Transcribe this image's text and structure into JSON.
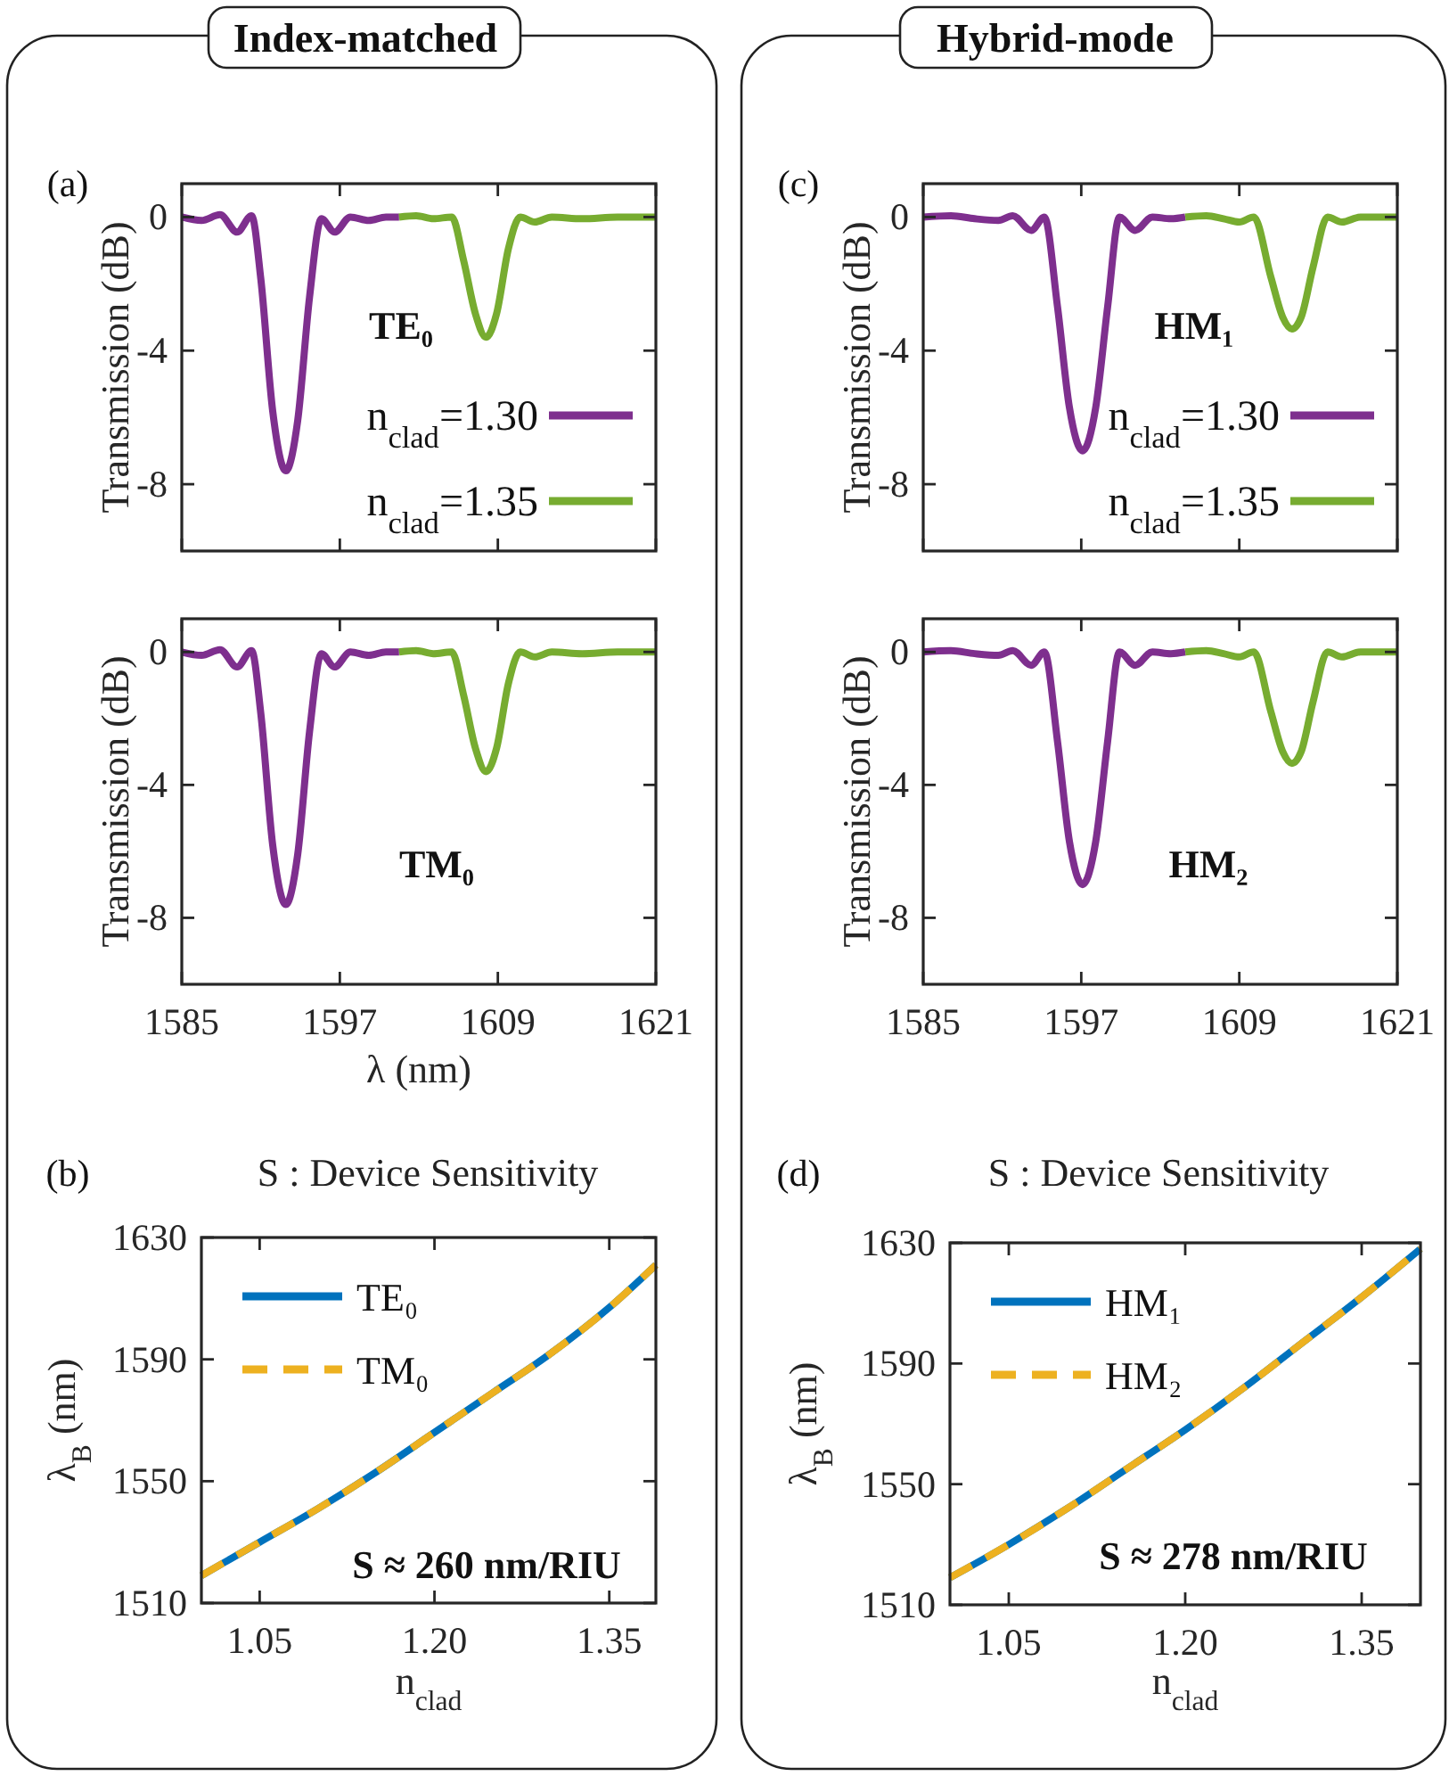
{
  "chart_data": [
    {
      "type": "line",
      "title": "Index-matched",
      "ylabel": "Transmission (dB)",
      "annotations": [
        "(a)",
        "TE₀"
      ],
      "xlim": [
        1585,
        1621
      ],
      "xticks": [
        1585,
        1597,
        1609,
        1621
      ],
      "ylim": [
        -10,
        1
      ],
      "yticks": [
        -8,
        -4,
        0
      ],
      "tick_labels": "y",
      "legend": "right",
      "series": [
        {
          "name": "n$_{clad}$=1.30",
          "color": "#7e2f8e",
          "x": [
            1585,
            1586.5,
            1587.9,
            1589.2,
            1590.3,
            1591,
            1591.9,
            1592.9,
            1593.8,
            1594.7,
            1595.6,
            1596.6,
            1597.8,
            1599.2,
            1600.5,
            1601.5
          ],
          "values": [
            0,
            -0.1,
            0.07,
            -0.45,
            0.04,
            -1.85,
            -5.8,
            -7.6,
            -6.1,
            -2.4,
            -0.05,
            -0.45,
            0,
            -0.1,
            0,
            0
          ]
        },
        {
          "name": "n$_{clad}$=1.35",
          "color": "#77ac30",
          "x": [
            1601.5,
            1602.8,
            1604.1,
            1605.5,
            1606.4,
            1607.3,
            1608.1,
            1608.9,
            1609.8,
            1610.7,
            1611.8,
            1613.1,
            1615.4,
            1618.1,
            1621
          ],
          "values": [
            0,
            0.04,
            -0.05,
            0,
            -1.3,
            -2.9,
            -3.6,
            -2.9,
            -0.95,
            0,
            -0.15,
            0,
            -0.05,
            0,
            0
          ]
        }
      ]
    },
    {
      "type": "line",
      "xlabel": "λ (nm)",
      "ylabel": "Transmission (dB)",
      "annotations": [
        "TM₀"
      ],
      "xlim": [
        1585,
        1621
      ],
      "xticks": [
        1585,
        1597,
        1609,
        1621
      ],
      "ylim": [
        -10,
        1
      ],
      "yticks": [
        -8,
        -4,
        0
      ],
      "series": [
        {
          "color": "#7e2f8e",
          "x": [
            1585,
            1586.5,
            1587.9,
            1589.2,
            1590.3,
            1591,
            1591.9,
            1592.9,
            1593.8,
            1594.7,
            1595.6,
            1596.6,
            1597.8,
            1599.2,
            1600.5,
            1601.5
          ],
          "values": [
            0,
            -0.1,
            0.07,
            -0.45,
            0.04,
            -1.85,
            -5.8,
            -7.6,
            -6.1,
            -2.4,
            -0.05,
            -0.45,
            0,
            -0.1,
            0,
            0
          ]
        },
        {
          "color": "#77ac30",
          "x": [
            1601.5,
            1602.8,
            1604.1,
            1605.5,
            1606.4,
            1607.3,
            1608.1,
            1608.9,
            1609.8,
            1610.7,
            1611.8,
            1613.1,
            1615.4,
            1618.1,
            1621
          ],
          "values": [
            0,
            0.04,
            -0.05,
            0,
            -1.3,
            -2.9,
            -3.6,
            -2.9,
            -0.95,
            0,
            -0.15,
            0,
            -0.05,
            0,
            0
          ]
        }
      ]
    },
    {
      "type": "line",
      "title": "S : Device Sensitivity",
      "xlabel": "n$_{clad}$",
      "ylabel": "λ$_{B}$ (nm)",
      "annotations": [
        "(b)",
        "S ≈ 260 nm/RIU"
      ],
      "xlim": [
        1,
        1.39
      ],
      "xticks": [
        1.05,
        {
          "value": 1.2,
          "label": "1.20"
        },
        1.35
      ],
      "ylim": [
        1510,
        1630
      ],
      "yticks": [
        1510,
        1550,
        1590,
        1630
      ],
      "legend": "top left",
      "series": [
        {
          "name": "TE₀",
          "color": "#0072bd",
          "line_style": "solid",
          "x": [
            1,
            1.05,
            1.1,
            1.15,
            1.2,
            1.25,
            1.3,
            1.35,
            1.39
          ],
          "values": [
            1519,
            1530,
            1541,
            1553,
            1566,
            1579,
            1592,
            1607,
            1621
          ]
        },
        {
          "name": "TM₀",
          "color": "#edb120",
          "line_style": "dashed",
          "x": [
            1,
            1.05,
            1.1,
            1.15,
            1.2,
            1.25,
            1.3,
            1.35,
            1.39
          ],
          "values": [
            1519,
            1530,
            1541,
            1553,
            1566,
            1579,
            1592,
            1607,
            1621
          ]
        }
      ]
    },
    {
      "type": "line",
      "title": "Hybrid-mode",
      "ylabel": "Transmission (dB)",
      "annotations": [
        "(c)",
        "HM₁"
      ],
      "xlim": [
        1585,
        1621
      ],
      "xticks": [
        1585,
        1597,
        1609,
        1621
      ],
      "ylim": [
        -10,
        1
      ],
      "yticks": [
        -8,
        -4,
        0
      ],
      "tick_labels": "y",
      "legend": "right",
      "series": [
        {
          "name": "n$_{clad}$=1.30",
          "color": "#7e2f8e",
          "x": [
            1585,
            1587.1,
            1588.9,
            1590.7,
            1591.8,
            1593.2,
            1594.2,
            1595.2,
            1596.1,
            1597.1,
            1598.1,
            1599,
            1599.9,
            1601.1,
            1602.4,
            1603.8,
            1604.9
          ],
          "values": [
            0,
            0.04,
            -0.05,
            -0.1,
            0.04,
            -0.4,
            0,
            -2.7,
            -5.7,
            -7,
            -5.7,
            -2.7,
            0,
            -0.4,
            0,
            -0.05,
            0
          ]
        },
        {
          "name": "n$_{clad}$=1.35",
          "color": "#77ac30",
          "x": [
            1604.9,
            1606.5,
            1607.8,
            1609,
            1610.1,
            1611.4,
            1612.3,
            1613,
            1613.7,
            1614.6,
            1615.7,
            1616.8,
            1618.2,
            1619.5,
            1621
          ],
          "values": [
            0,
            0.04,
            -0.05,
            -0.15,
            0,
            -1.8,
            -3,
            -3.35,
            -3,
            -1.5,
            0,
            -0.15,
            0,
            0,
            0
          ]
        }
      ]
    },
    {
      "type": "line",
      "ylabel": "Transmission (dB)",
      "annotations": [
        "HM₂"
      ],
      "xlim": [
        1585,
        1621
      ],
      "xticks": [
        1585,
        1597,
        1609,
        1621
      ],
      "ylim": [
        -10,
        1
      ],
      "yticks": [
        -8,
        -4,
        0
      ],
      "series": [
        {
          "color": "#7e2f8e",
          "x": [
            1585,
            1587.1,
            1588.9,
            1590.7,
            1591.8,
            1593.2,
            1594.2,
            1595.2,
            1596.1,
            1597.1,
            1598.1,
            1599,
            1599.9,
            1601.1,
            1602.4,
            1603.8,
            1604.9
          ],
          "values": [
            0,
            0.04,
            -0.05,
            -0.1,
            0.04,
            -0.4,
            0,
            -2.7,
            -5.7,
            -7,
            -5.7,
            -2.7,
            0,
            -0.4,
            0,
            -0.05,
            0
          ]
        },
        {
          "color": "#77ac30",
          "x": [
            1604.9,
            1606.5,
            1607.8,
            1609,
            1610.1,
            1611.4,
            1612.3,
            1613,
            1613.7,
            1614.6,
            1615.7,
            1616.8,
            1618.2,
            1619.5,
            1621
          ],
          "values": [
            0,
            0.04,
            -0.05,
            -0.15,
            0,
            -1.8,
            -3,
            -3.35,
            -3,
            -1.5,
            0,
            -0.15,
            0,
            0,
            0
          ]
        }
      ]
    },
    {
      "type": "line",
      "title": "S : Device Sensitivity",
      "xlabel": "n$_{clad}$",
      "ylabel": "λ$_{B}$ (nm)",
      "annotations": [
        "(d)",
        "S ≈ 278 nm/RIU"
      ],
      "xlim": [
        1,
        1.4
      ],
      "xticks": [
        1.05,
        {
          "value": 1.2,
          "label": "1.20"
        },
        1.35
      ],
      "ylim": [
        1510,
        1630
      ],
      "yticks": [
        1510,
        1550,
        1590,
        1630
      ],
      "legend": "top left",
      "series": [
        {
          "name": "HM₁",
          "color": "#0072bd",
          "line_style": "solid",
          "x": [
            1,
            1.05,
            1.1,
            1.15,
            1.2,
            1.25,
            1.3,
            1.35,
            1.4
          ],
          "values": [
            1519,
            1530,
            1542,
            1555,
            1568,
            1582,
            1597,
            1612,
            1628
          ]
        },
        {
          "name": "HM₂",
          "color": "#edb120",
          "line_style": "dashed",
          "x": [
            1,
            1.05,
            1.1,
            1.15,
            1.2,
            1.25,
            1.3,
            1.35,
            1.4
          ],
          "values": [
            1519,
            1530,
            1542,
            1555,
            1568,
            1582,
            1597,
            1612,
            1628
          ]
        }
      ]
    }
  ]
}
